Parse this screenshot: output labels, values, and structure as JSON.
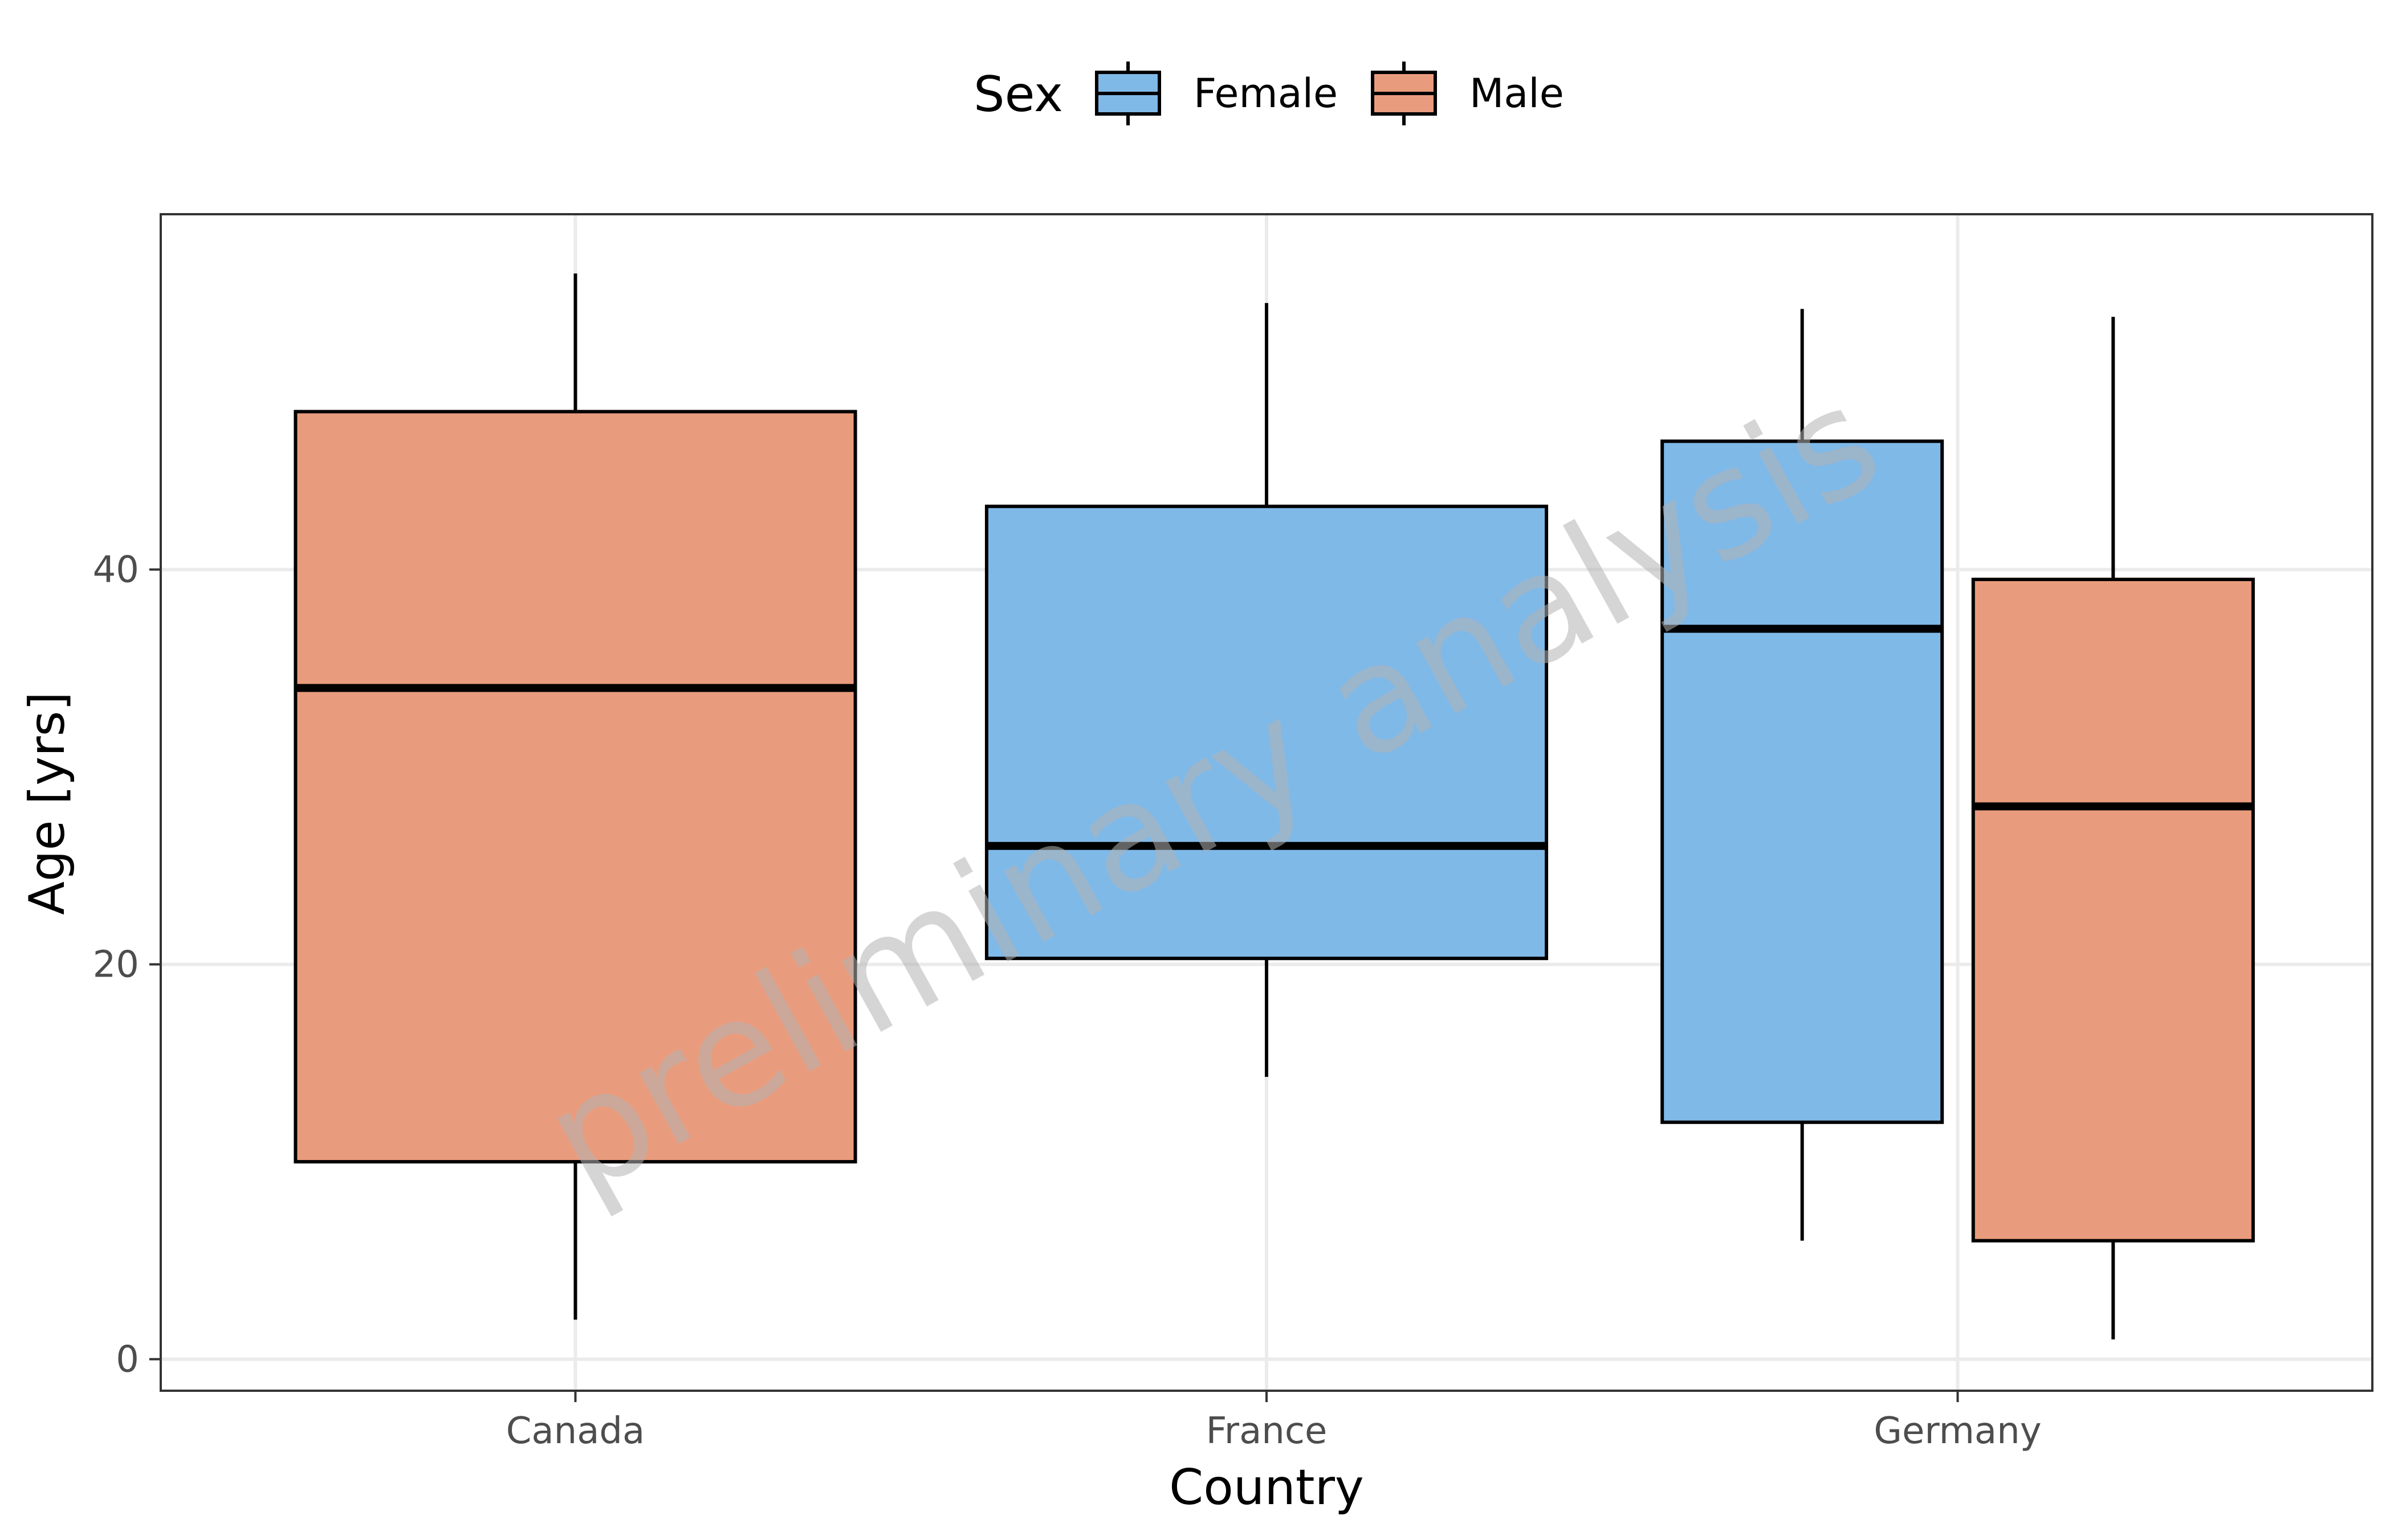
{
  "chart_data": {
    "type": "boxplot",
    "title": "",
    "xlabel": "Country",
    "ylabel": "Age [yrs]",
    "ylim": [
      -1.6,
      58
    ],
    "y_ticks": [
      0,
      20,
      40
    ],
    "categories": [
      "Canada",
      "France",
      "Germany"
    ],
    "grid": true,
    "legend": {
      "title": "Sex",
      "placement": "top",
      "entries": [
        {
          "name": "Female",
          "color": "#7fb9e8"
        },
        {
          "name": "Male",
          "color": "#e99c7d"
        }
      ]
    },
    "boxes": [
      {
        "category": "Canada",
        "group": "Male",
        "min": 2,
        "q1": 10,
        "median": 34,
        "q3": 48,
        "max": 55
      },
      {
        "category": "France",
        "group": "Female",
        "min": 14.3,
        "q1": 20.3,
        "median": 26,
        "q3": 43.2,
        "max": 53.5
      },
      {
        "category": "Germany",
        "group": "Female",
        "min": 6,
        "q1": 12,
        "median": 37,
        "q3": 46.5,
        "max": 53.2
      },
      {
        "category": "Germany",
        "group": "Male",
        "min": 1,
        "q1": 6,
        "median": 28,
        "q3": 39.5,
        "max": 52.8
      }
    ],
    "watermark": "preliminary analysis"
  }
}
